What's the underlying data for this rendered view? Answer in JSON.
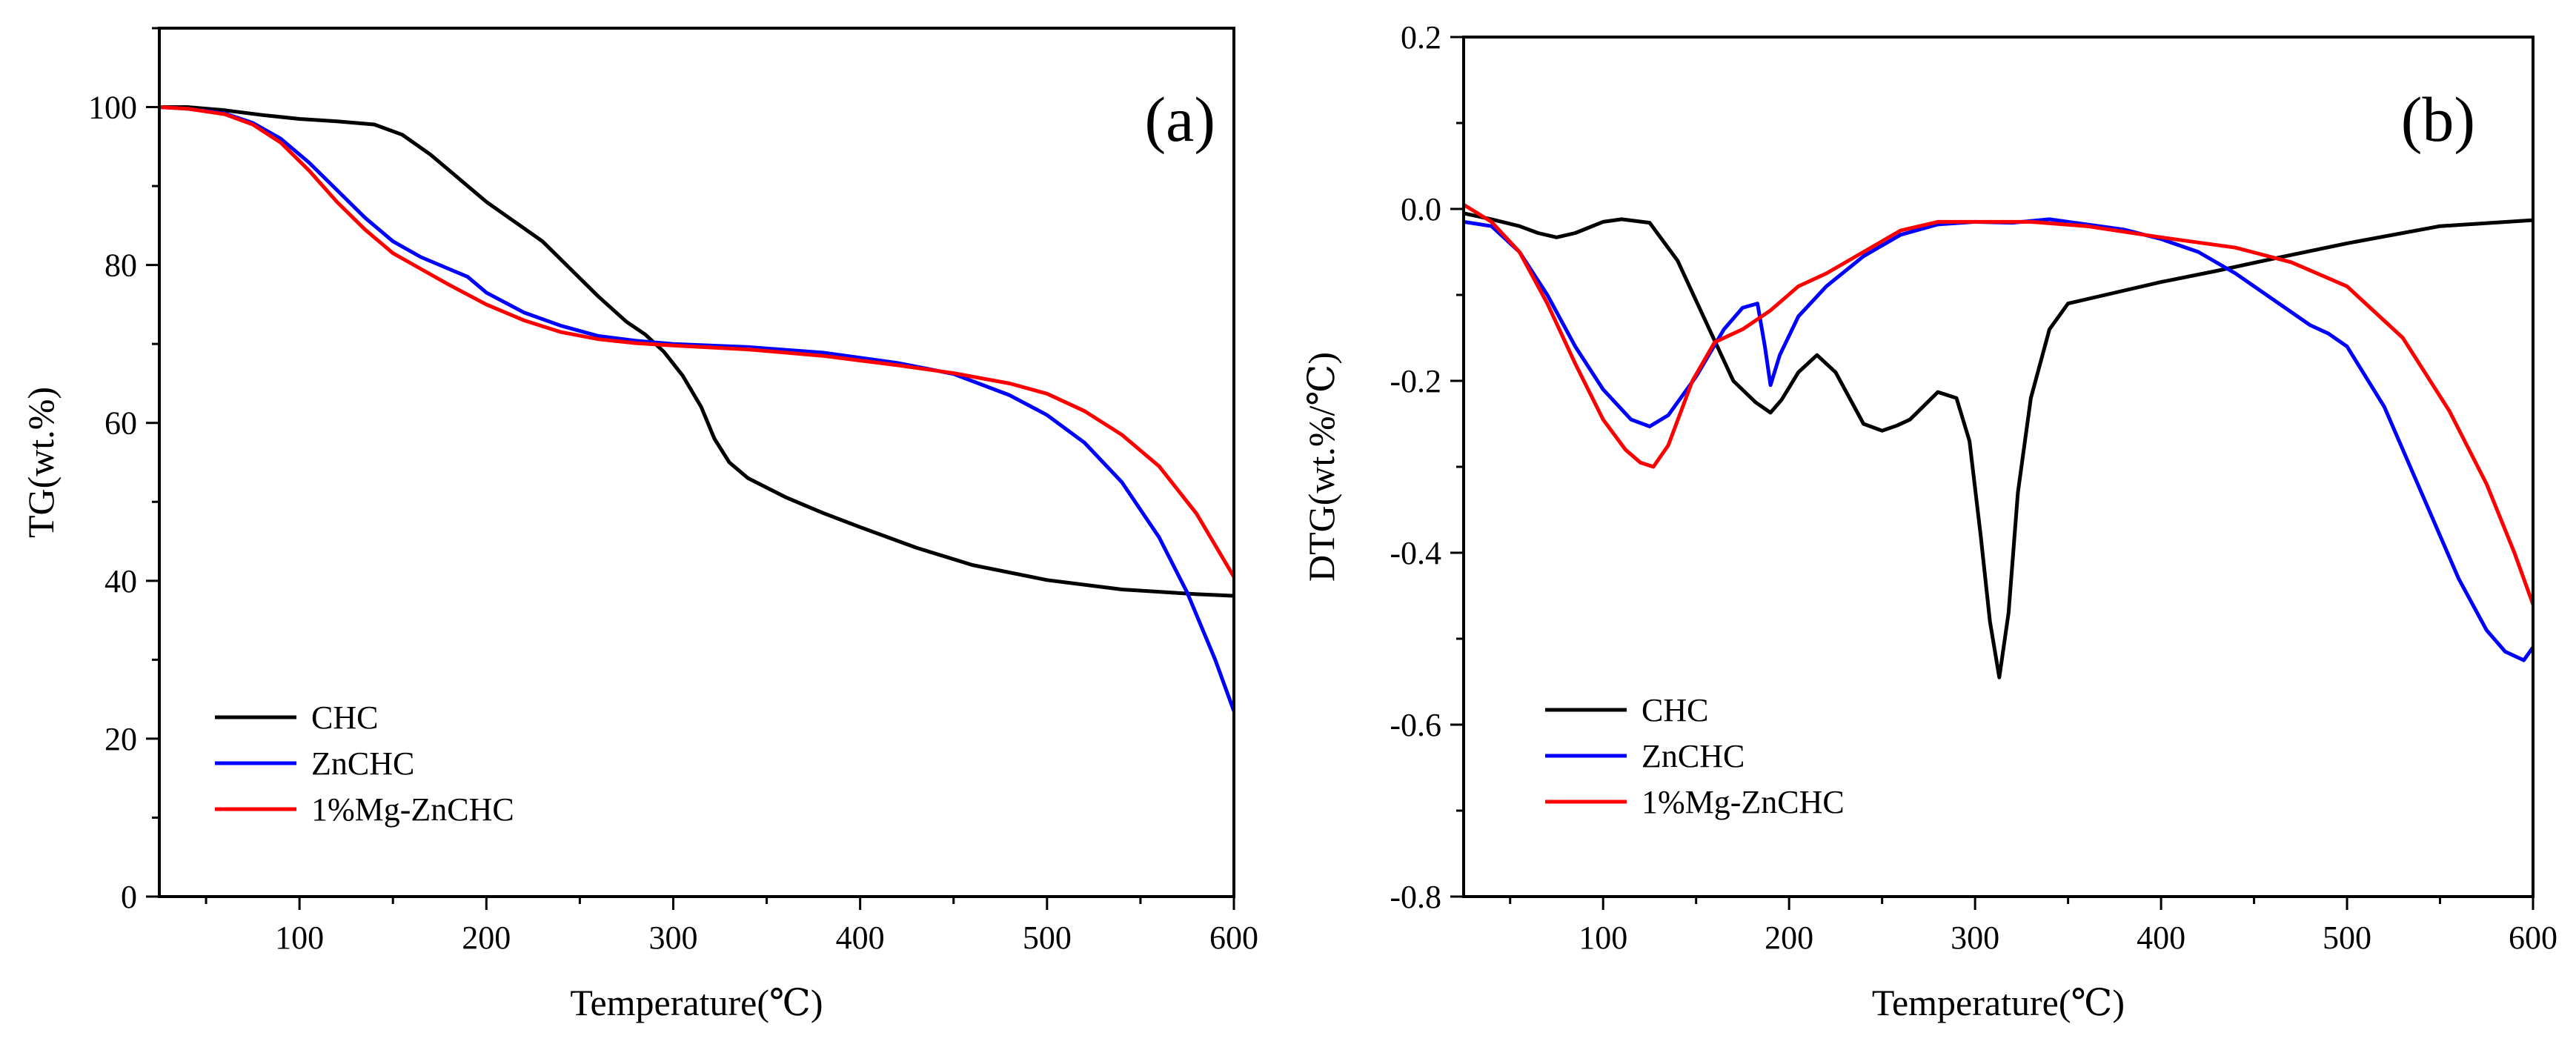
{
  "chart_data": [
    {
      "type": "line",
      "panel_label": "(a)",
      "xlabel": "Temperature(℃)",
      "ylabel": "TG(wt.%)",
      "xlim": [
        25,
        600
      ],
      "ylim": [
        0,
        110
      ],
      "xticks": [
        100,
        200,
        300,
        400,
        500,
        600
      ],
      "yticks": [
        0,
        20,
        40,
        60,
        80,
        100
      ],
      "grid": false,
      "legend_position": "bottom-left",
      "series": [
        {
          "name": "CHC",
          "color": "#000000",
          "x": [
            25,
            40,
            60,
            80,
            100,
            120,
            140,
            155,
            170,
            185,
            200,
            215,
            230,
            245,
            260,
            275,
            285,
            295,
            305,
            315,
            322,
            330,
            340,
            360,
            380,
            400,
            430,
            460,
            500,
            540,
            580,
            600
          ],
          "y": [
            100,
            100,
            99.6,
            99.0,
            98.5,
            98.2,
            97.8,
            96.5,
            94.0,
            91.0,
            88.0,
            85.5,
            83.0,
            79.5,
            76.0,
            72.8,
            71.2,
            69.0,
            66.0,
            62.0,
            58.0,
            55.0,
            53.0,
            50.6,
            48.6,
            46.8,
            44.2,
            42.0,
            40.1,
            38.9,
            38.3,
            38.1
          ]
        },
        {
          "name": "ZnCHC",
          "color": "#0000ff",
          "x": [
            25,
            40,
            60,
            75,
            90,
            105,
            120,
            135,
            150,
            165,
            180,
            190,
            200,
            220,
            240,
            260,
            280,
            300,
            340,
            380,
            420,
            450,
            480,
            500,
            520,
            540,
            560,
            575,
            590,
            600
          ],
          "y": [
            100,
            99.8,
            99.2,
            98.0,
            96.0,
            93.0,
            89.5,
            86.0,
            83.0,
            81.0,
            79.5,
            78.5,
            76.5,
            74.0,
            72.3,
            71.0,
            70.4,
            70.0,
            69.6,
            68.9,
            67.6,
            66.2,
            63.5,
            61.0,
            57.5,
            52.5,
            45.5,
            38.5,
            30.0,
            23.5
          ]
        },
        {
          "name": "1%Mg-ZnCHC",
          "color": "#ff0000",
          "x": [
            25,
            40,
            60,
            75,
            90,
            105,
            120,
            135,
            150,
            165,
            180,
            200,
            220,
            240,
            260,
            280,
            300,
            340,
            380,
            420,
            450,
            480,
            500,
            520,
            540,
            560,
            580,
            600
          ],
          "y": [
            100,
            99.8,
            99.1,
            97.8,
            95.5,
            92.0,
            88.0,
            84.5,
            81.5,
            79.5,
            77.5,
            75.0,
            73.0,
            71.5,
            70.6,
            70.1,
            69.8,
            69.3,
            68.5,
            67.3,
            66.3,
            65.0,
            63.7,
            61.5,
            58.5,
            54.5,
            48.5,
            40.5
          ]
        }
      ]
    },
    {
      "type": "line",
      "panel_label": "(b)",
      "xlabel": "Temperature(℃)",
      "ylabel": "DTG(wt.%/℃)",
      "xlim": [
        25,
        600
      ],
      "ylim": [
        -0.8,
        0.2
      ],
      "xticks": [
        100,
        200,
        300,
        400,
        500,
        600
      ],
      "yticks": [
        -0.8,
        -0.6,
        -0.4,
        -0.2,
        0.0,
        0.2
      ],
      "ytick_labels": [
        "-0.8",
        "-0.6",
        "-0.4",
        "-0.2",
        "0.0",
        "0.2"
      ],
      "grid": false,
      "legend_position": "bottom-left",
      "series": [
        {
          "name": "CHC",
          "color": "#000000",
          "x": [
            25,
            40,
            55,
            65,
            75,
            85,
            100,
            110,
            125,
            140,
            155,
            170,
            182,
            190,
            196,
            205,
            215,
            225,
            240,
            250,
            258,
            265,
            272,
            280,
            290,
            297,
            303,
            308,
            313,
            318,
            323,
            330,
            340,
            350,
            370,
            400,
            430,
            460,
            500,
            550,
            600
          ],
          "y": [
            -0.005,
            -0.012,
            -0.02,
            -0.028,
            -0.033,
            -0.028,
            -0.015,
            -0.012,
            -0.016,
            -0.06,
            -0.13,
            -0.2,
            -0.225,
            -0.237,
            -0.222,
            -0.19,
            -0.17,
            -0.19,
            -0.25,
            -0.258,
            -0.252,
            -0.245,
            -0.23,
            -0.213,
            -0.22,
            -0.27,
            -0.38,
            -0.48,
            -0.545,
            -0.47,
            -0.33,
            -0.22,
            -0.14,
            -0.11,
            -0.1,
            -0.085,
            -0.072,
            -0.058,
            -0.04,
            -0.02,
            -0.013
          ]
        },
        {
          "name": "ZnCHC",
          "color": "#0000ff",
          "x": [
            25,
            40,
            55,
            70,
            85,
            100,
            115,
            125,
            135,
            150,
            165,
            175,
            183,
            187,
            190,
            195,
            205,
            220,
            240,
            260,
            280,
            300,
            320,
            340,
            360,
            380,
            400,
            420,
            440,
            460,
            480,
            490,
            500,
            520,
            540,
            560,
            575,
            585,
            595,
            600
          ],
          "y": [
            -0.015,
            -0.02,
            -0.05,
            -0.1,
            -0.16,
            -0.21,
            -0.245,
            -0.253,
            -0.24,
            -0.195,
            -0.14,
            -0.115,
            -0.11,
            -0.16,
            -0.205,
            -0.17,
            -0.125,
            -0.09,
            -0.055,
            -0.03,
            -0.018,
            -0.015,
            -0.016,
            -0.012,
            -0.018,
            -0.024,
            -0.035,
            -0.05,
            -0.075,
            -0.105,
            -0.135,
            -0.145,
            -0.16,
            -0.23,
            -0.33,
            -0.43,
            -0.49,
            -0.515,
            -0.525,
            -0.51
          ]
        },
        {
          "name": "1%Mg-ZnCHC",
          "color": "#ff0000",
          "x": [
            25,
            40,
            55,
            70,
            85,
            100,
            112,
            120,
            127,
            135,
            148,
            160,
            175,
            190,
            205,
            220,
            240,
            260,
            280,
            300,
            330,
            360,
            400,
            440,
            470,
            500,
            530,
            555,
            575,
            590,
            600
          ],
          "y": [
            0.005,
            -0.015,
            -0.05,
            -0.11,
            -0.18,
            -0.245,
            -0.28,
            -0.295,
            -0.3,
            -0.275,
            -0.2,
            -0.155,
            -0.14,
            -0.118,
            -0.09,
            -0.075,
            -0.05,
            -0.025,
            -0.015,
            -0.015,
            -0.015,
            -0.02,
            -0.033,
            -0.045,
            -0.062,
            -0.09,
            -0.15,
            -0.235,
            -0.32,
            -0.4,
            -0.46
          ]
        }
      ]
    }
  ]
}
